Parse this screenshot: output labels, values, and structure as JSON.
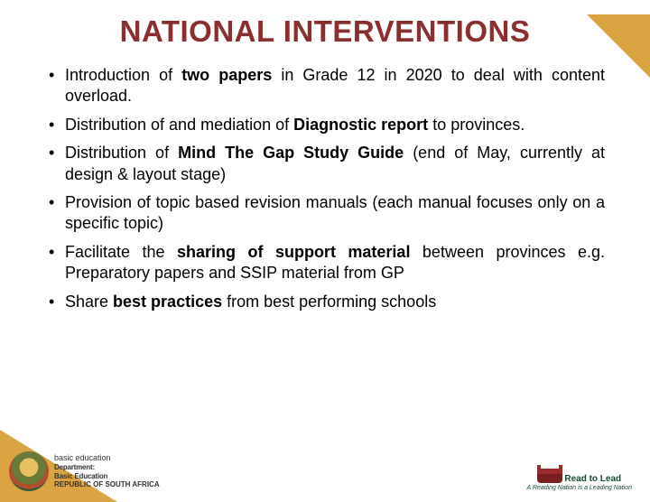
{
  "title": "NATIONAL INTERVENTIONS",
  "bullets": [
    {
      "pre": "Introduction of ",
      "bold1": "two papers",
      "post1": " in Grade 12 in 2020 to deal with content overload."
    },
    {
      "pre": "Distribution of and mediation of ",
      "bold1": "Diagnostic report",
      "post1": " to provinces."
    },
    {
      "pre": "Distribution of ",
      "bold1": "Mind The Gap Study Guide",
      "post1": " (end of May, currently at design & layout stage)"
    },
    {
      "pre": "Provision of topic based revision manuals (each manual focuses only on a specific topic)",
      "bold1": "",
      "post1": ""
    },
    {
      "pre": "Facilitate the ",
      "bold1": "sharing of support material",
      "post1": " between provinces e.g. Preparatory papers and SSIP material from GP"
    },
    {
      "pre": "Share ",
      "bold1": "best practices",
      "post1": " from best performing schools"
    }
  ],
  "footer": {
    "dept_l1": "basic education",
    "dept_l2": "Department:",
    "dept_l3": "Basic Education",
    "dept_l4": "REPUBLIC OF SOUTH AFRICA",
    "rtl_top": "Read to Lead",
    "rtl_tag": "A Reading Nation is a Leading Nation"
  },
  "colors": {
    "title": "#8b2e2e",
    "accent": "#d9a441",
    "text": "#000000",
    "logo_green": "#144a2e"
  }
}
